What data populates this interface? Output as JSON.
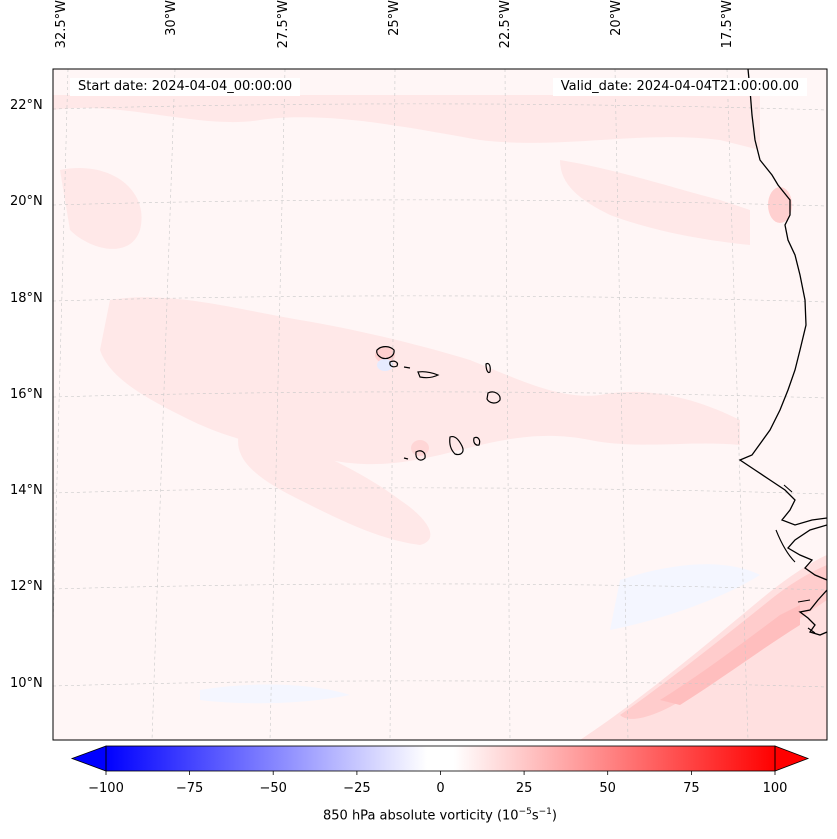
{
  "map": {
    "start_date": "Start date: 2024-04-04_00:00:00",
    "valid_date": "Valid_date: 2024-04-04T21:00:00.00",
    "lon_labels": [
      "32.5°W",
      "30°W",
      "27.5°W",
      "25°W",
      "22.5°W",
      "20°W",
      "17.5°W"
    ],
    "lat_labels": [
      "22°N",
      "20°N",
      "18°N",
      "16°N",
      "14°N",
      "12°N",
      "10°N"
    ]
  },
  "colorbar": {
    "ticks": [
      "−100",
      "−75",
      "−50",
      "−25",
      "0",
      "25",
      "50",
      "75",
      "100"
    ],
    "title_prefix": "850 hPa absolute vorticity (10",
    "title_exp1": "−5",
    "title_mid": "s",
    "title_exp2": "−1",
    "title_suffix": ")",
    "min": -100,
    "max": 100,
    "neg_color": "#0000ff",
    "pos_color": "#ff0000"
  },
  "colors": {
    "background": "#fff7f7",
    "field_light": "#ffe6e6",
    "field_medium": "#ffd2d2",
    "coast": "#000000",
    "grid": "#cccccc"
  }
}
